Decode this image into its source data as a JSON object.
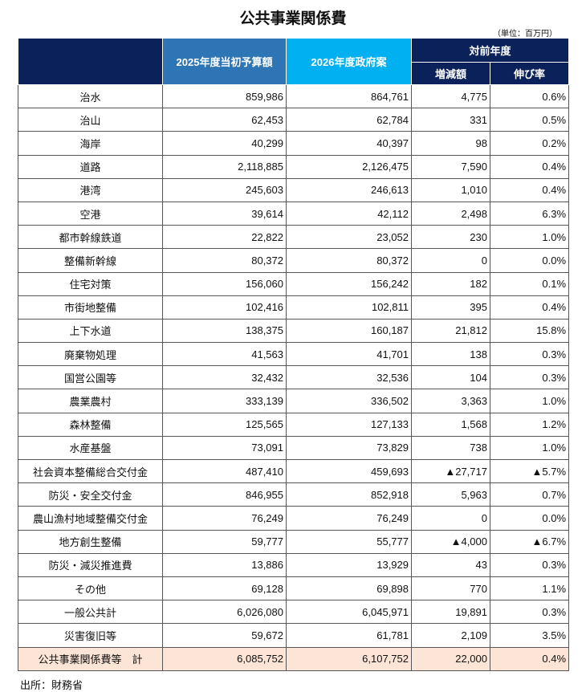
{
  "title": "公共事業関係費",
  "unit": "（単位：百万円）",
  "header": {
    "col1": "2025年度当初予算額",
    "col2": "2026年度政府案",
    "group": "対前年度",
    "col3": "増減額",
    "col4": "伸び率"
  },
  "rows": [
    [
      "治水",
      "859,986",
      "864,761",
      "4,775",
      "0.6%"
    ],
    [
      "治山",
      "62,453",
      "62,784",
      "331",
      "0.5%"
    ],
    [
      "海岸",
      "40,299",
      "40,397",
      "98",
      "0.2%"
    ],
    [
      "道路",
      "2,118,885",
      "2,126,475",
      "7,590",
      "0.4%"
    ],
    [
      "港湾",
      "245,603",
      "246,613",
      "1,010",
      "0.4%"
    ],
    [
      "空港",
      "39,614",
      "42,112",
      "2,498",
      "6.3%"
    ],
    [
      "都市幹線鉄道",
      "22,822",
      "23,052",
      "230",
      "1.0%"
    ],
    [
      "整備新幹線",
      "80,372",
      "80,372",
      "0",
      "0.0%"
    ],
    [
      "住宅対策",
      "156,060",
      "156,242",
      "182",
      "0.1%"
    ],
    [
      "市街地整備",
      "102,416",
      "102,811",
      "395",
      "0.4%"
    ],
    [
      "上下水道",
      "138,375",
      "160,187",
      "21,812",
      "15.8%"
    ],
    [
      "廃棄物処理",
      "41,563",
      "41,701",
      "138",
      "0.3%"
    ],
    [
      "国営公園等",
      "32,432",
      "32,536",
      "104",
      "0.3%"
    ],
    [
      "農業農村",
      "333,139",
      "336,502",
      "3,363",
      "1.0%"
    ],
    [
      "森林整備",
      "125,565",
      "127,133",
      "1,568",
      "1.2%"
    ],
    [
      "水産基盤",
      "73,091",
      "73,829",
      "738",
      "1.0%"
    ],
    [
      "社会資本整備総合交付金",
      "487,410",
      "459,693",
      "▲27,717",
      "▲5.7%"
    ],
    [
      "防災・安全交付金",
      "846,955",
      "852,918",
      "5,963",
      "0.7%"
    ],
    [
      "農山漁村地域整備交付金",
      "76,249",
      "76,249",
      "0",
      "0.0%"
    ],
    [
      "地方創生整備",
      "59,777",
      "55,777",
      "▲4,000",
      "▲6.7%"
    ],
    [
      "防災・減災推進費",
      "13,886",
      "13,929",
      "43",
      "0.3%"
    ],
    [
      "その他",
      "69,128",
      "69,898",
      "770",
      "1.1%"
    ],
    [
      "一般公共計",
      "6,026,080",
      "6,045,971",
      "19,891",
      "0.3%"
    ],
    [
      "災害復旧等",
      "59,672",
      "61,781",
      "2,109",
      "3.5%"
    ]
  ],
  "total": [
    "公共事業関係費等　計",
    "6,085,752",
    "6,107,752",
    "22,000",
    "0.4%"
  ],
  "source": "出所：財務省"
}
